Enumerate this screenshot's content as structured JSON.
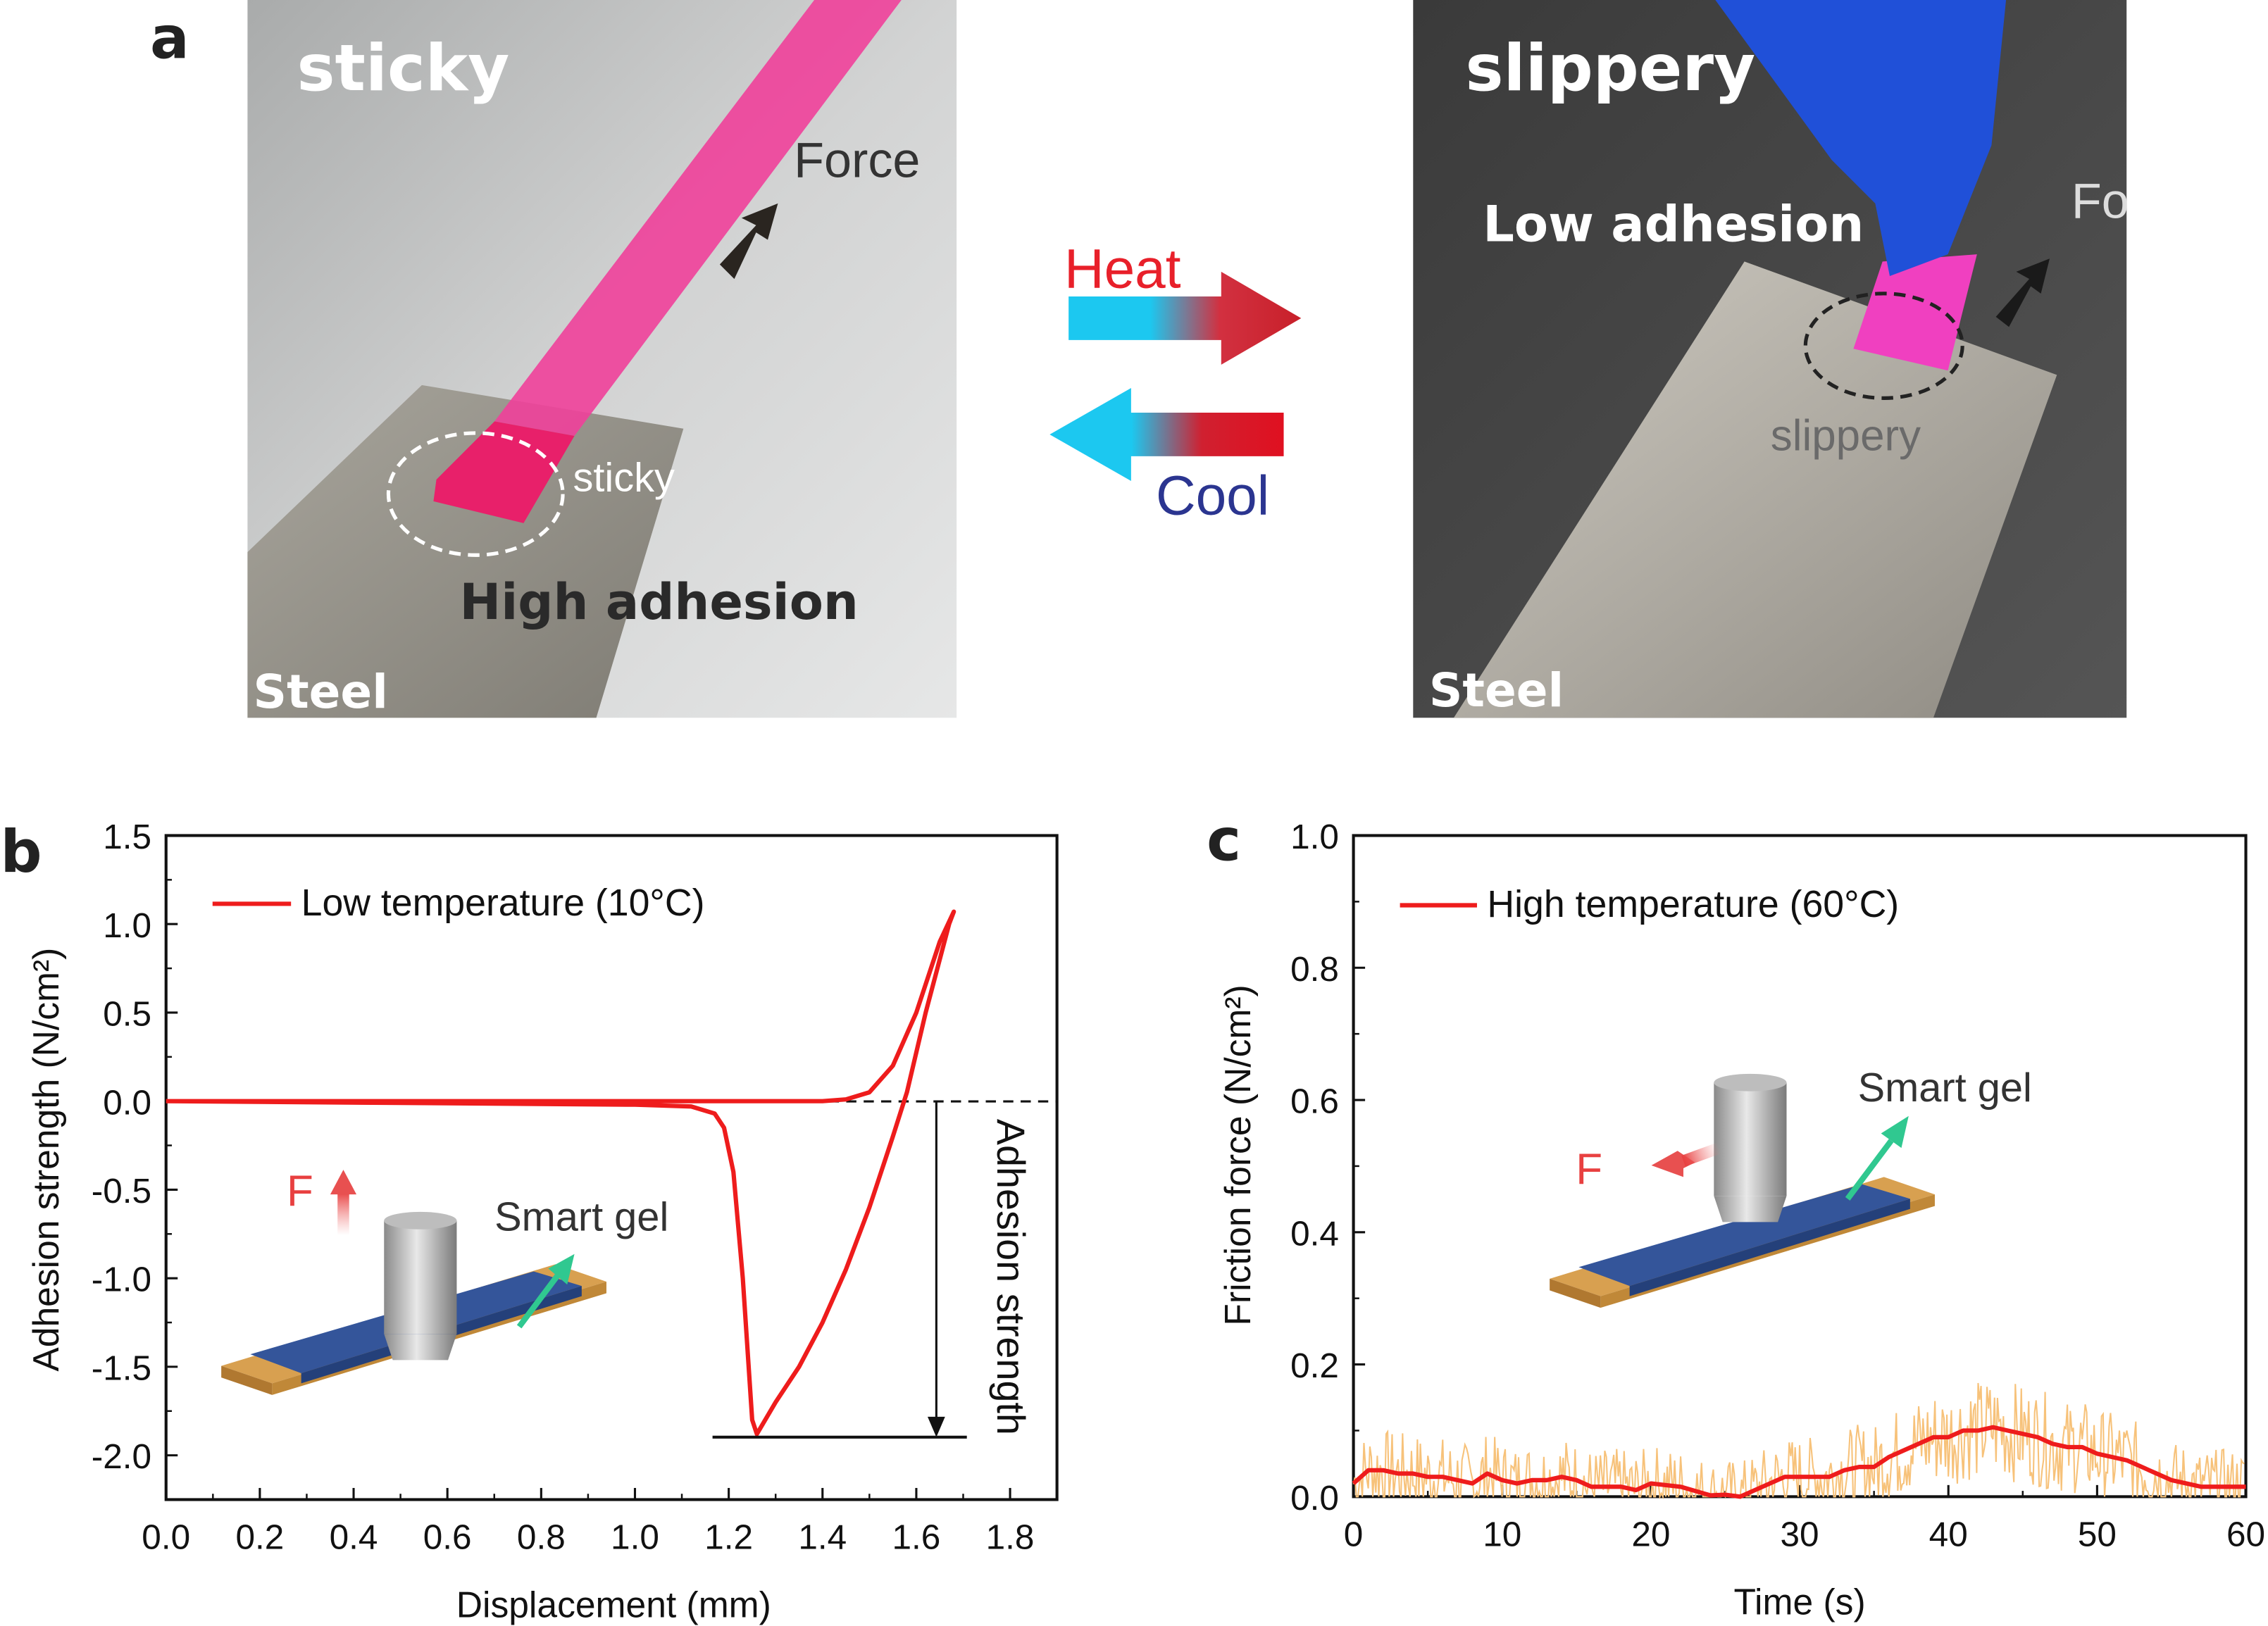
{
  "panel_a": {
    "label": "a",
    "left_photo": {
      "title": "sticky",
      "force": "Force",
      "spot": "sticky",
      "caption": "High adhesion",
      "substrate": "Steel"
    },
    "right_photo": {
      "title": "slippery",
      "force": "Force",
      "spot": "slippery",
      "caption": "Low adhesion",
      "substrate": "Steel"
    },
    "heat_label": "Heat",
    "cool_label": "Cool",
    "colors": {
      "heat": "#e8202a",
      "cool": "#2b3590",
      "cyan": "#1cc8f0"
    }
  },
  "chart_data": [
    {
      "panel_label": "b",
      "type": "line",
      "xlabel": "Displacement (mm)",
      "ylabel": "Adhesion strength (N/cm²)",
      "xlim": [
        0,
        1.9
      ],
      "ylim": [
        -2.25,
        1.5
      ],
      "xticks": [
        "0.0",
        "0.2",
        "0.4",
        "0.6",
        "0.8",
        "1.0",
        "1.2",
        "1.4",
        "1.6",
        "1.8"
      ],
      "yticks": [
        "1.5",
        "1.0",
        "0.5",
        "0.0",
        "-0.5",
        "-1.0",
        "-1.5",
        "-2.0"
      ],
      "legend": {
        "label": "Low  temperature (10°C)",
        "position": "top-left"
      },
      "annotation": "Adhesion strength",
      "inset": {
        "force": "F",
        "material": "Smart gel"
      },
      "series": [
        {
          "name": "Low  temperature (10°C)",
          "color": "#ee1c1c",
          "points": [
            [
              0,
              0
            ],
            [
              0.5,
              0
            ],
            [
              1.0,
              0
            ],
            [
              1.4,
              0
            ],
            [
              1.45,
              0.01
            ],
            [
              1.5,
              0.05
            ],
            [
              1.55,
              0.2
            ],
            [
              1.6,
              0.5
            ],
            [
              1.65,
              0.9
            ],
            [
              1.68,
              1.07
            ],
            [
              1.67,
              1.0
            ],
            [
              1.62,
              0.5
            ],
            [
              1.58,
              0.05
            ],
            [
              1.55,
              -0.2
            ],
            [
              1.5,
              -0.6
            ],
            [
              1.45,
              -0.95
            ],
            [
              1.4,
              -1.25
            ],
            [
              1.35,
              -1.5
            ],
            [
              1.3,
              -1.7
            ],
            [
              1.26,
              -1.88
            ],
            [
              1.25,
              -1.8
            ],
            [
              1.23,
              -1.0
            ],
            [
              1.21,
              -0.4
            ],
            [
              1.19,
              -0.15
            ],
            [
              1.17,
              -0.07
            ],
            [
              1.12,
              -0.03
            ],
            [
              1.0,
              -0.02
            ],
            [
              0.5,
              -0.01
            ],
            [
              0,
              0
            ]
          ]
        }
      ]
    },
    {
      "panel_label": "c",
      "type": "line",
      "xlabel": "Time (s)",
      "ylabel": "Friction force (N/cm²)",
      "xlim": [
        0,
        60
      ],
      "ylim": [
        0,
        1.0
      ],
      "xticks": [
        "0",
        "10",
        "20",
        "30",
        "40",
        "50",
        "60"
      ],
      "yticks": [
        "1.0",
        "0.8",
        "0.6",
        "0.4",
        "0.2",
        "0.0"
      ],
      "legend": {
        "label": "High temperature (60°C)",
        "position": "top-left"
      },
      "inset": {
        "force": "F",
        "material": "Smart gel"
      },
      "raw_color": "#f7c27a",
      "series": [
        {
          "name": "High temperature (60°C)",
          "color": "#ee1c1c",
          "x": [
            0,
            1,
            2,
            3,
            4,
            5,
            6,
            7,
            8,
            9,
            10,
            11,
            12,
            13,
            14,
            15,
            16,
            18,
            19,
            20,
            22,
            24,
            25,
            26,
            27,
            28,
            29,
            31,
            32,
            33,
            34,
            35,
            36,
            37,
            38,
            39,
            40,
            41,
            42,
            43,
            44,
            45,
            46,
            47,
            48,
            49,
            50,
            51,
            52,
            53,
            54,
            55,
            56,
            57,
            58,
            60
          ],
          "y": [
            0.02,
            0.04,
            0.04,
            0.035,
            0.035,
            0.03,
            0.03,
            0.025,
            0.02,
            0.035,
            0.025,
            0.02,
            0.025,
            0.025,
            0.03,
            0.025,
            0.015,
            0.015,
            0.01,
            0.02,
            0.015,
            0.002,
            0.003,
            0.0,
            0.01,
            0.02,
            0.03,
            0.03,
            0.03,
            0.04,
            0.045,
            0.045,
            0.06,
            0.07,
            0.08,
            0.09,
            0.09,
            0.1,
            0.1,
            0.105,
            0.1,
            0.095,
            0.09,
            0.08,
            0.075,
            0.075,
            0.065,
            0.06,
            0.055,
            0.045,
            0.035,
            0.025,
            0.02,
            0.015,
            0.015,
            0.015
          ]
        }
      ]
    }
  ]
}
